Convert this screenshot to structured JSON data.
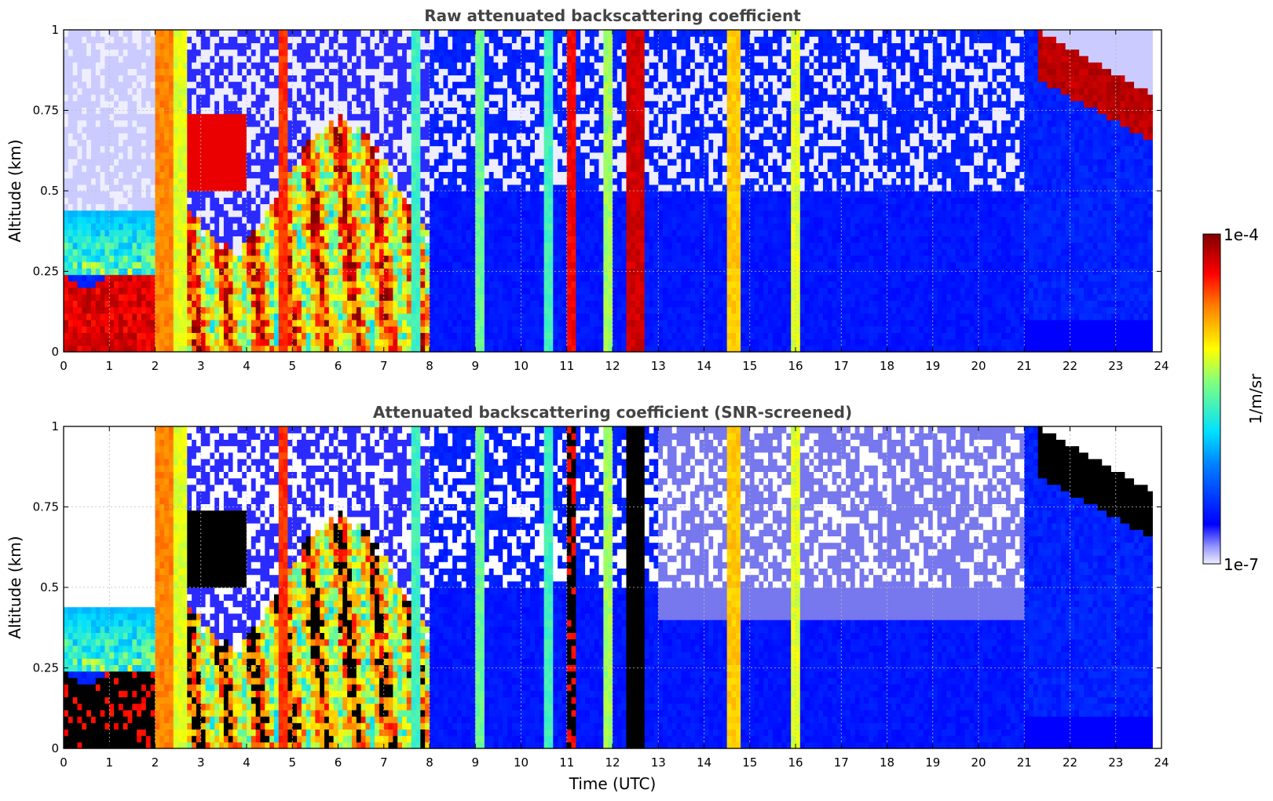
{
  "chart_data": [
    {
      "type": "heatmap",
      "title": "Raw attenuated backscattering coefficient",
      "xlabel": "",
      "ylabel": "Altitude (km)",
      "xlim": [
        0,
        24
      ],
      "ylim": [
        0,
        1
      ],
      "x_ticks": [
        "0",
        "1",
        "2",
        "3",
        "4",
        "5",
        "6",
        "7",
        "8",
        "9",
        "10",
        "11",
        "12",
        "13",
        "14",
        "15",
        "16",
        "17",
        "18",
        "19",
        "20",
        "21",
        "22",
        "23",
        "24"
      ],
      "y_ticks": [
        "0",
        "0.25",
        "0.5",
        "0.75",
        "1"
      ],
      "grid": true,
      "colorscale": "jet (log)",
      "screened": false
    },
    {
      "type": "heatmap",
      "title": "Attenuated backscattering coefficient (SNR-screened)",
      "xlabel": "Time (UTC)",
      "ylabel": "Altitude (km)",
      "xlim": [
        0,
        24
      ],
      "ylim": [
        0,
        1
      ],
      "x_ticks": [
        "0",
        "1",
        "2",
        "3",
        "4",
        "5",
        "6",
        "7",
        "8",
        "9",
        "10",
        "11",
        "12",
        "13",
        "14",
        "15",
        "16",
        "17",
        "18",
        "19",
        "20",
        "21",
        "22",
        "23",
        "24"
      ],
      "y_ticks": [
        "0",
        "0.25",
        "0.5",
        "0.75",
        "1"
      ],
      "grid": true,
      "colorscale": "jet (log)",
      "screened": true
    }
  ],
  "colorbar": {
    "label": "1/m/sr",
    "max_label": "1e-4",
    "min_label": "1e-7",
    "range": [
      1e-07,
      0.0001
    ],
    "scale": "log"
  }
}
